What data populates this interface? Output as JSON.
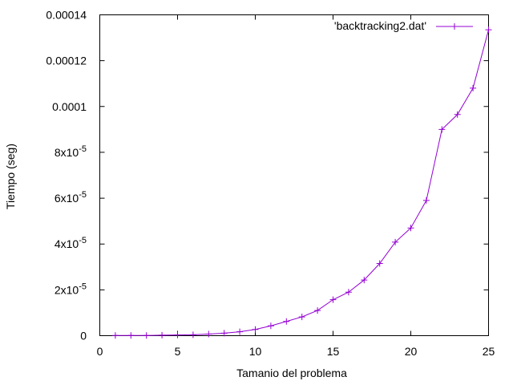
{
  "chart_data": {
    "type": "line",
    "xlabel": "Tamanio del problema",
    "ylabel": "Tiempo (seg)",
    "xlim": [
      0,
      25
    ],
    "ylim": [
      0,
      0.00014
    ],
    "grid": false,
    "legend_position": "top-right",
    "x_ticks": [
      {
        "value": 0,
        "label": "0"
      },
      {
        "value": 5,
        "label": "5"
      },
      {
        "value": 10,
        "label": "10"
      },
      {
        "value": 15,
        "label": "15"
      },
      {
        "value": 20,
        "label": "20"
      },
      {
        "value": 25,
        "label": "25"
      }
    ],
    "y_ticks": [
      {
        "value": 0,
        "label": "0",
        "mantissa": "",
        "exponent": ""
      },
      {
        "value": 2e-05,
        "label": "2x10-5",
        "mantissa": "2x10",
        "exponent": "-5"
      },
      {
        "value": 4e-05,
        "label": "4x10-5",
        "mantissa": "4x10",
        "exponent": "-5"
      },
      {
        "value": 6e-05,
        "label": "6x10-5",
        "mantissa": "6x10",
        "exponent": "-5"
      },
      {
        "value": 8e-05,
        "label": "8x10-5",
        "mantissa": "8x10",
        "exponent": "-5"
      },
      {
        "value": 0.0001,
        "label": "0.0001",
        "mantissa": "",
        "exponent": ""
      },
      {
        "value": 0.00012,
        "label": "0.00012",
        "mantissa": "",
        "exponent": ""
      },
      {
        "value": 0.00014,
        "label": "0.00014",
        "mantissa": "",
        "exponent": ""
      }
    ],
    "series": [
      {
        "name": "'backtracking2.dat'",
        "color": "#9400d3",
        "marker": "plus",
        "x": [
          1,
          2,
          3,
          4,
          5,
          6,
          7,
          8,
          9,
          10,
          11,
          12,
          13,
          14,
          15,
          16,
          17,
          18,
          19,
          20,
          21,
          22,
          23,
          24,
          25
        ],
        "y": [
          1e-07,
          1e-07,
          1e-07,
          2e-07,
          3e-07,
          4e-07,
          7e-07,
          1.1e-06,
          1.7e-06,
          2.7e-06,
          4.3e-06,
          6.2e-06,
          8.2e-06,
          1.1e-05,
          1.57e-05,
          1.9e-05,
          2.43e-05,
          3.15e-05,
          4.08e-05,
          4.7e-05,
          5.9e-05,
          9e-05,
          9.65e-05,
          0.000108,
          0.0001335
        ]
      }
    ]
  }
}
